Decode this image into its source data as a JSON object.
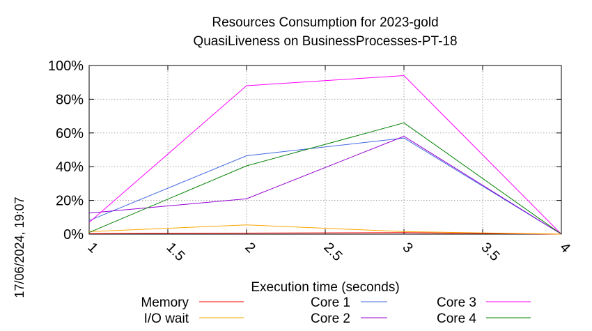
{
  "timestamp": "17/06/2024, 19:07",
  "chart_data": {
    "type": "line",
    "title": [
      "Resources Consumption for 2023-gold",
      "QuasiLiveness on BusinessProcesses-PT-18"
    ],
    "xlabel": "Execution time (seconds)",
    "ylabel": "",
    "xlim": [
      1,
      4
    ],
    "ylim": [
      0,
      100
    ],
    "x_ticks": [
      1,
      1.5,
      2,
      2.5,
      3,
      3.5,
      4
    ],
    "x_tick_labels": [
      "1",
      "1.5",
      "2",
      "2.5",
      "3",
      "3.5",
      "4"
    ],
    "y_ticks": [
      0,
      20,
      40,
      60,
      80,
      100
    ],
    "y_tick_labels": [
      "0%",
      "20%",
      "40%",
      "60%",
      "80%",
      "100%"
    ],
    "grid": true,
    "legend_position": "bottom",
    "x": [
      1,
      2,
      3,
      4
    ],
    "series": [
      {
        "name": "Memory",
        "color": "#ff0000",
        "values": [
          0.3,
          0.6,
          0.9,
          0
        ]
      },
      {
        "name": "I/O wait",
        "color": "#ffa500",
        "values": [
          1.5,
          5.5,
          1.5,
          0
        ]
      },
      {
        "name": "Core 1",
        "color": "#4169e1",
        "values": [
          8,
          46.5,
          57,
          0
        ]
      },
      {
        "name": "Core 2",
        "color": "#9400d3",
        "values": [
          12.5,
          21,
          58,
          0
        ]
      },
      {
        "name": "Core 3",
        "color": "#ff00ff",
        "values": [
          7,
          88,
          94,
          0
        ]
      },
      {
        "name": "Core 4",
        "color": "#008000",
        "values": [
          1,
          40.5,
          66,
          0
        ]
      }
    ]
  }
}
